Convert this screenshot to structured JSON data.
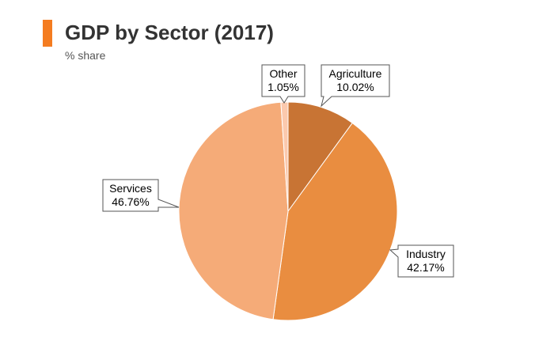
{
  "title": "GDP by Sector (2017)",
  "subtitle": "% share",
  "accent_color": "#f47c20",
  "chart_data": {
    "type": "pie",
    "title": "GDP by Sector (2017)",
    "subtitle": "% share",
    "slices": [
      {
        "label": "Agriculture",
        "value": 10.02,
        "value_label": "10.02%",
        "color": "#c87434"
      },
      {
        "label": "Industry",
        "value": 42.17,
        "value_label": "42.17%",
        "color": "#e98d40"
      },
      {
        "label": "Services",
        "value": 46.76,
        "value_label": "46.76%",
        "color": "#f5ab78"
      },
      {
        "label": "Other",
        "value": 1.05,
        "value_label": "1.05%",
        "color": "#fbc9ad"
      }
    ],
    "start_angle_deg": 0,
    "direction": "clockwise"
  }
}
